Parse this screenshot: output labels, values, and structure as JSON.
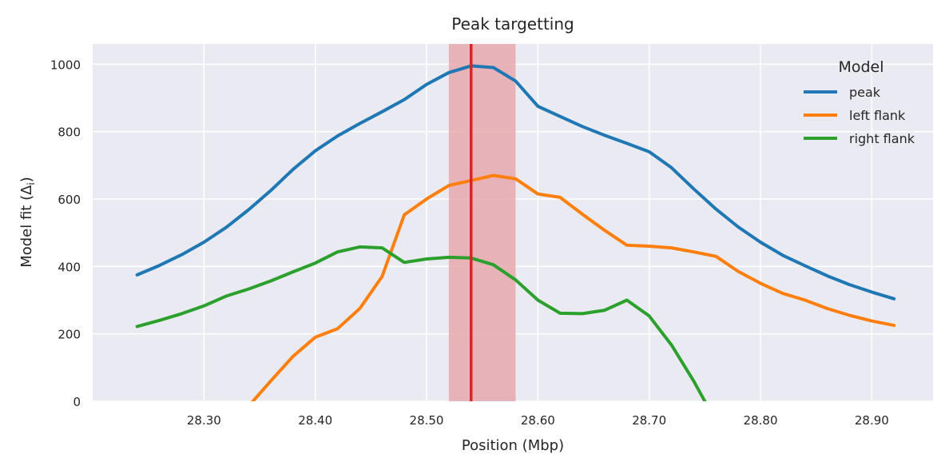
{
  "chart_data": {
    "type": "line",
    "title": "Peak targetting",
    "xlabel": "Position (Mbp)",
    "ylabel": "Model fit (Δ",
    "ylabel_sub": "i",
    "ylabel_suffix": ")",
    "xlim": [
      28.2,
      28.955
    ],
    "ylim": [
      0,
      1060
    ],
    "xticks": [
      28.3,
      28.4,
      28.5,
      28.6,
      28.7,
      28.8,
      28.9
    ],
    "xtick_labels": [
      "28.30",
      "28.40",
      "28.50",
      "28.60",
      "28.70",
      "28.80",
      "28.90"
    ],
    "yticks": [
      0,
      200,
      400,
      600,
      800,
      1000
    ],
    "ytick_labels": [
      "0",
      "200",
      "400",
      "600",
      "800",
      "1000"
    ],
    "grid": true,
    "legend": {
      "title": "Model",
      "position": "top-right"
    },
    "highlight_band": {
      "x0": 28.52,
      "x1": 28.58,
      "color": "#e8a9ae"
    },
    "vertical_line": {
      "x": 28.54,
      "color": "#d62728"
    },
    "series": [
      {
        "name": "peak",
        "color": "#1f77b4",
        "x": [
          28.24,
          28.26,
          28.28,
          28.3,
          28.32,
          28.34,
          28.36,
          28.38,
          28.4,
          28.42,
          28.44,
          28.46,
          28.48,
          28.5,
          28.52,
          28.54,
          28.56,
          28.58,
          28.6,
          28.62,
          28.64,
          28.66,
          28.68,
          28.7,
          28.72,
          28.74,
          28.76,
          28.78,
          28.8,
          28.82,
          28.84,
          28.86,
          28.88,
          28.9,
          28.92
        ],
        "y": [
          375,
          403,
          435,
          472,
          516,
          568,
          625,
          688,
          743,
          787,
          824,
          859,
          895,
          940,
          975,
          995,
          990,
          950,
          875,
          845,
          815,
          789,
          765,
          740,
          693,
          630,
          570,
          517,
          472,
          433,
          402,
          372,
          346,
          324,
          304
        ]
      },
      {
        "name": "left flank",
        "color": "#ff7f0e",
        "x": [
          28.34,
          28.36,
          28.38,
          28.4,
          28.42,
          28.44,
          28.46,
          28.48,
          28.5,
          28.52,
          28.54,
          28.56,
          28.58,
          28.6,
          28.62,
          28.64,
          28.66,
          28.68,
          28.7,
          28.72,
          28.74,
          28.76,
          28.78,
          28.8,
          28.82,
          28.84,
          28.86,
          28.88,
          28.9,
          28.92
        ],
        "y": [
          -15,
          60,
          133,
          190,
          215,
          275,
          370,
          553,
          600,
          640,
          655,
          670,
          660,
          615,
          605,
          555,
          507,
          463,
          460,
          455,
          443,
          430,
          385,
          350,
          320,
          300,
          275,
          255,
          238,
          225
        ]
      },
      {
        "name": "right flank",
        "color": "#2ca02c",
        "x": [
          28.24,
          28.26,
          28.28,
          28.3,
          28.32,
          28.34,
          28.36,
          28.38,
          28.4,
          28.42,
          28.44,
          28.46,
          28.48,
          28.5,
          28.52,
          28.54,
          28.56,
          28.58,
          28.6,
          28.62,
          28.64,
          28.66,
          28.68,
          28.7,
          28.72,
          28.74,
          28.76
        ],
        "y": [
          222,
          240,
          260,
          283,
          312,
          333,
          357,
          384,
          410,
          443,
          458,
          455,
          412,
          422,
          427,
          425,
          405,
          360,
          300,
          261,
          260,
          270,
          300,
          253,
          167,
          60,
          -60
        ]
      }
    ]
  }
}
